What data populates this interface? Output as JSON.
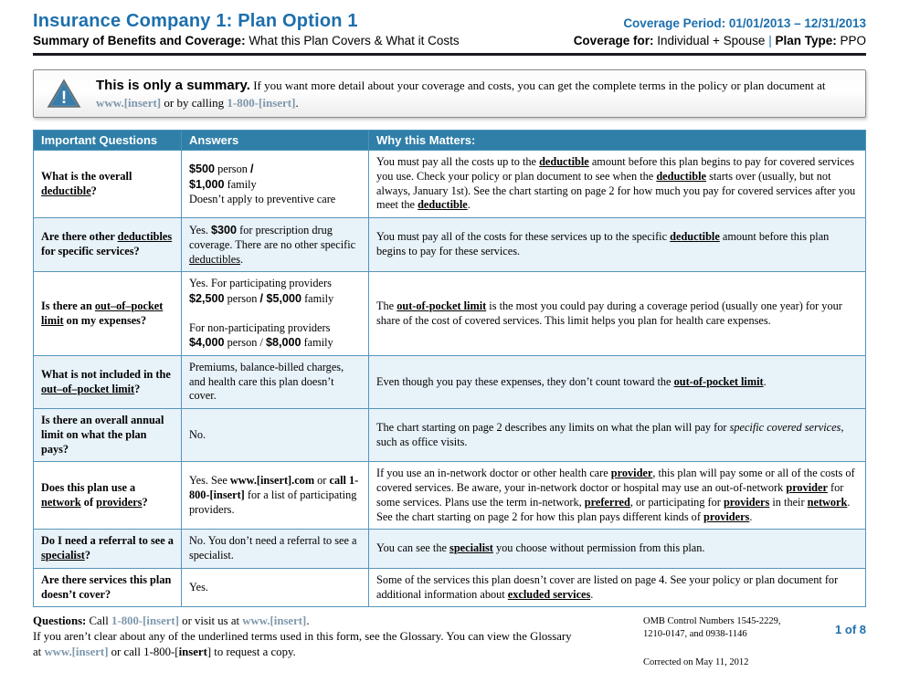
{
  "header": {
    "title": "Insurance Company 1: Plan Option 1",
    "subtitle": [
      {
        "t": "Summary of Benefits and Coverage:",
        "c": "b"
      },
      {
        "t": " What this Plan Covers & What it Costs"
      }
    ],
    "coverage_period": "Coverage Period: 01/01/2013 – 12/31/2013",
    "coverage_line": [
      {
        "t": "Coverage for:",
        "c": "b"
      },
      {
        "t": " Individual + Spouse "
      },
      {
        "t": "|",
        "c": "sep"
      },
      {
        "t": " "
      },
      {
        "t": "Plan Type:",
        "c": "b"
      },
      {
        "t": " PPO"
      }
    ]
  },
  "notice": {
    "icon": "alert-triangle-icon",
    "segments": [
      {
        "t": "This is only a summary.",
        "c": "intro"
      },
      {
        "t": " If you want more detail about your coverage and costs, you can get the complete terms in the policy or plan document at "
      },
      {
        "t": "www.[insert]",
        "c": "link"
      },
      {
        "t": " or by calling "
      },
      {
        "t": "1-800-[insert]",
        "c": "link"
      },
      {
        "t": "."
      }
    ]
  },
  "table": {
    "headers": [
      "Important Questions",
      "Answers",
      "Why this Matters:"
    ],
    "rows": [
      {
        "q": [
          {
            "t": "What is the overall "
          },
          {
            "t": "deductible",
            "c": "term"
          },
          {
            "t": "?"
          }
        ],
        "a": [
          {
            "t": "$500",
            "c": "amt"
          },
          {
            "t": " person "
          },
          {
            "t": "/",
            "c": "amt"
          },
          {
            "br": true
          },
          {
            "t": "$1,000",
            "c": "amt"
          },
          {
            "t": " family"
          },
          {
            "br": true
          },
          {
            "t": "Doesn’t apply to preventive care"
          }
        ],
        "w": [
          {
            "t": "You must pay all the costs up to the "
          },
          {
            "t": "deductible",
            "c": "term"
          },
          {
            "t": " amount before this plan begins to pay for covered services you use. Check your policy or plan document to see when the "
          },
          {
            "t": "deductible",
            "c": "term"
          },
          {
            "t": " starts over (usually, but not always, January 1st). See the chart starting on page 2 for how much you pay for covered services after you meet the "
          },
          {
            "t": "deductible",
            "c": "term"
          },
          {
            "t": "."
          }
        ]
      },
      {
        "q": [
          {
            "t": "Are there other "
          },
          {
            "t": "deductibles",
            "c": "term"
          },
          {
            "t": " for specific services?"
          }
        ],
        "a": [
          {
            "t": "Yes. "
          },
          {
            "t": "$300",
            "c": "amt"
          },
          {
            "t": " for prescription drug coverage. There are no other specific "
          },
          {
            "t": "deductibles",
            "c": "u"
          },
          {
            "t": "."
          }
        ],
        "w": [
          {
            "t": "You must pay all of the costs for these services up to the specific "
          },
          {
            "t": "deductible",
            "c": "term"
          },
          {
            "t": " amount before this plan begins to pay for these services."
          }
        ]
      },
      {
        "q": [
          {
            "t": "Is there an "
          },
          {
            "t": "out–of–pocket limit",
            "c": "term"
          },
          {
            "t": " on my expenses?"
          }
        ],
        "a": [
          {
            "t": "Yes. For participating providers"
          },
          {
            "br": true
          },
          {
            "t": "$2,500",
            "c": "amt"
          },
          {
            "t": " person "
          },
          {
            "t": "/ $5,000",
            "c": "amt"
          },
          {
            "t": " family"
          },
          {
            "br": true
          },
          {
            "br": true
          },
          {
            "t": "For non-participating providers"
          },
          {
            "br": true
          },
          {
            "t": "$4,000",
            "c": "amt"
          },
          {
            "t": " person / "
          },
          {
            "t": "$8,000",
            "c": "amt"
          },
          {
            "t": " family"
          }
        ],
        "w": [
          {
            "t": "The "
          },
          {
            "t": "out-of-pocket limit",
            "c": "term"
          },
          {
            "t": " is the most you could pay during a coverage period (usually one year) for your share of the cost of covered services. This limit helps you plan for health care expenses."
          }
        ]
      },
      {
        "q": [
          {
            "t": "What is not included in the "
          },
          {
            "t": "out–of–pocket limit",
            "c": "term"
          },
          {
            "t": "?"
          }
        ],
        "a": [
          {
            "t": "Premiums, balance-billed charges, and health care this plan doesn’t cover."
          }
        ],
        "w": [
          {
            "t": "Even though you pay these expenses, they don’t count toward the "
          },
          {
            "t": "out-of-pocket limit",
            "c": "term"
          },
          {
            "t": "."
          }
        ]
      },
      {
        "q": [
          {
            "t": "Is there an overall annual limit on what the plan pays?"
          }
        ],
        "a": [
          {
            "t": "No."
          }
        ],
        "w": [
          {
            "t": "The chart starting on page 2 describes any limits on what the plan will pay for "
          },
          {
            "t": "specific covered services",
            "c": "i"
          },
          {
            "t": ", such as office visits."
          }
        ]
      },
      {
        "q": [
          {
            "t": "Does this plan use a "
          },
          {
            "t": "network",
            "c": "term"
          },
          {
            "t": " of "
          },
          {
            "t": "providers",
            "c": "term"
          },
          {
            "t": "?"
          }
        ],
        "a": [
          {
            "t": "Yes. See "
          },
          {
            "t": "www.[insert].com",
            "c": "b"
          },
          {
            "t": " or "
          },
          {
            "t": "call 1-800-[insert]",
            "c": "b"
          },
          {
            "t": " for a list of participating providers."
          }
        ],
        "w": [
          {
            "t": "If you use an in-network doctor or other health care "
          },
          {
            "t": "provider",
            "c": "term"
          },
          {
            "t": ", this plan will pay some or all of the costs of covered services. Be aware, your in-network doctor or hospital may use an out-of-network "
          },
          {
            "t": "provider",
            "c": "term"
          },
          {
            "t": " for some services. Plans use the term in-network, "
          },
          {
            "t": "preferred",
            "c": "term"
          },
          {
            "t": ", or participating for "
          },
          {
            "t": "providers",
            "c": "term"
          },
          {
            "t": " in their "
          },
          {
            "t": "network",
            "c": "term"
          },
          {
            "t": ". See the chart starting on page 2 for how this plan pays different kinds of "
          },
          {
            "t": "providers",
            "c": "term"
          },
          {
            "t": "."
          }
        ]
      },
      {
        "q": [
          {
            "t": "Do I need a referral to see a "
          },
          {
            "t": "specialist",
            "c": "term"
          },
          {
            "t": "?"
          }
        ],
        "a": [
          {
            "t": "No. You don’t need a referral to see a specialist."
          }
        ],
        "w": [
          {
            "t": "You can see the "
          },
          {
            "t": "specialist",
            "c": "term"
          },
          {
            "t": " you choose without permission from this plan."
          }
        ]
      },
      {
        "q": [
          {
            "t": "Are there services this plan doesn’t cover?"
          }
        ],
        "a": [
          {
            "t": "Yes."
          }
        ],
        "w": [
          {
            "t": "Some of the services this plan doesn’t cover are listed on page 4. See your policy or plan document for additional information about "
          },
          {
            "t": "excluded services",
            "c": "term"
          },
          {
            "t": "."
          }
        ]
      }
    ]
  },
  "footer": {
    "line1": [
      {
        "t": "Questions: ",
        "c": "b"
      },
      {
        "t": "Call "
      },
      {
        "t": "1-800-[insert]",
        "c": "link"
      },
      {
        "t": " or visit us at "
      },
      {
        "t": "www.[insert]",
        "c": "link"
      },
      {
        "t": "."
      }
    ],
    "line2": [
      {
        "t": "If you aren’t clear about any of the underlined terms used in this form, see the Glossary. You can view the Glossary"
      }
    ],
    "line3": [
      {
        "t": "at "
      },
      {
        "t": "www.[insert]",
        "c": "link"
      },
      {
        "t": " or call 1-800-["
      },
      {
        "t": "insert",
        "c": "b"
      },
      {
        "t": "] to request a copy."
      }
    ],
    "omb1": "OMB Control Numbers 1545-2229,",
    "omb2": "1210-0147, and 0938-1146",
    "page_indicator": "1 of 8",
    "corrected": "Corrected on May 11, 2012"
  }
}
